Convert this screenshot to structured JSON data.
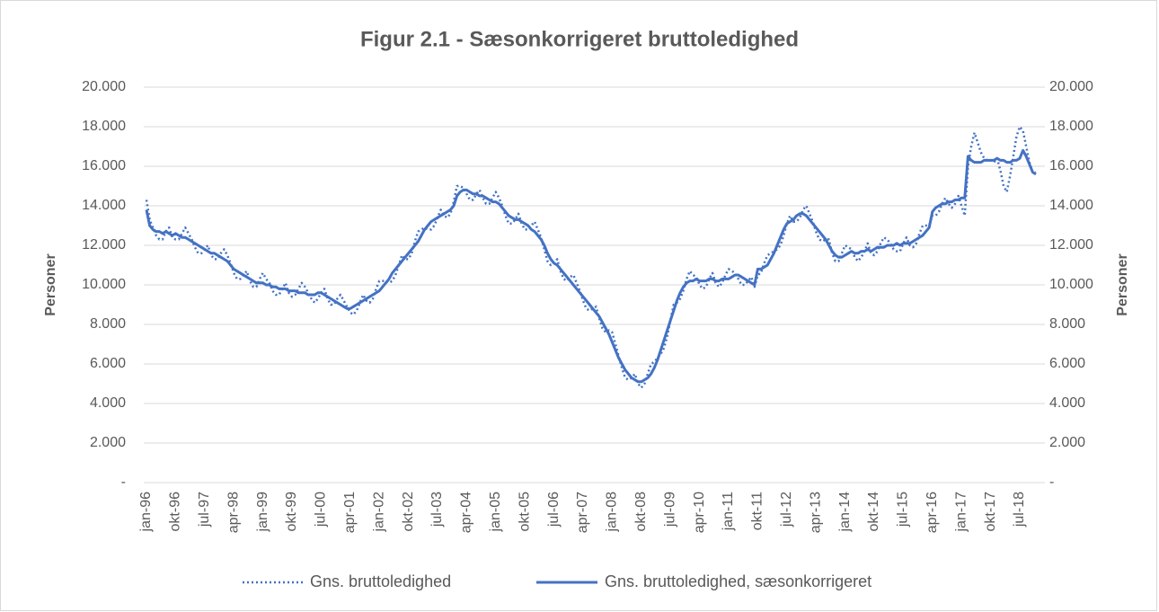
{
  "chart_data": {
    "type": "line",
    "title": "Figur 2.1 - Sæsonkorrigeret bruttoledighed",
    "ylabel": "Personer",
    "y2label": "Personer",
    "categories": [
      "jan-96",
      null,
      null,
      null,
      null,
      null,
      null,
      null,
      null,
      "okt-96",
      null,
      null,
      null,
      null,
      null,
      null,
      null,
      null,
      "jul-97",
      null,
      null,
      null,
      null,
      null,
      null,
      null,
      null,
      "apr-98",
      null,
      null,
      null,
      null,
      null,
      null,
      null,
      null,
      "jan-99",
      null,
      null,
      null,
      null,
      null,
      null,
      null,
      null,
      "okt-99",
      null,
      null,
      null,
      null,
      null,
      null,
      null,
      null,
      "jul-00",
      null,
      null,
      null,
      null,
      null,
      null,
      null,
      null,
      "apr-01",
      null,
      null,
      null,
      null,
      null,
      null,
      null,
      null,
      "jan-02",
      null,
      null,
      null,
      null,
      null,
      null,
      null,
      null,
      "okt-02",
      null,
      null,
      null,
      null,
      null,
      null,
      null,
      null,
      "jul-03",
      null,
      null,
      null,
      null,
      null,
      null,
      null,
      null,
      "apr-04",
      null,
      null,
      null,
      null,
      null,
      null,
      null,
      null,
      "jan-05",
      null,
      null,
      null,
      null,
      null,
      null,
      null,
      null,
      "okt-05",
      null,
      null,
      null,
      null,
      null,
      null,
      null,
      null,
      "jul-06",
      null,
      null,
      null,
      null,
      null,
      null,
      null,
      null,
      "apr-07",
      null,
      null,
      null,
      null,
      null,
      null,
      null,
      null,
      "jan-08",
      null,
      null,
      null,
      null,
      null,
      null,
      null,
      null,
      "okt-08",
      null,
      null,
      null,
      null,
      null,
      null,
      null,
      null,
      "jul-09",
      null,
      null,
      null,
      null,
      null,
      null,
      null,
      null,
      "apr-10",
      null,
      null,
      null,
      null,
      null,
      null,
      null,
      null,
      "jan-11",
      null,
      null,
      null,
      null,
      null,
      null,
      null,
      null,
      "okt-11",
      null,
      null,
      null,
      null,
      null,
      null,
      null,
      null,
      "jul-12",
      null,
      null,
      null,
      null,
      null,
      null,
      null,
      null,
      "apr-13",
      null,
      null,
      null,
      null,
      null,
      null,
      null,
      null,
      "jan-14",
      null,
      null,
      null,
      null,
      null,
      null,
      null,
      null,
      "okt-14",
      null,
      null,
      null,
      null,
      null,
      null,
      null,
      null,
      "jul-15",
      null,
      null,
      null,
      null,
      null,
      null,
      null,
      null,
      "apr-16",
      null,
      null,
      null,
      null,
      null,
      null,
      null,
      null,
      "jan-17",
      null,
      null,
      null,
      null,
      null,
      null,
      null,
      null,
      "okt-17",
      null,
      null,
      null,
      null,
      null,
      null,
      null,
      null,
      "jul-18",
      null,
      null,
      null,
      null,
      null
    ],
    "series": [
      {
        "name": "Gns. bruttoledighed",
        "color": "#4472c4",
        "dash": "dotted",
        "values": [
          14300,
          13300,
          12900,
          12500,
          12300,
          12300,
          12700,
          12900,
          12400,
          12300,
          12300,
          12600,
          12900,
          12600,
          12300,
          11900,
          11600,
          11600,
          11800,
          12000,
          11500,
          11300,
          11300,
          11600,
          11800,
          11500,
          11100,
          10600,
          10300,
          10300,
          10500,
          10700,
          10200,
          9900,
          9900,
          10300,
          10600,
          10300,
          10100,
          9700,
          9500,
          9500,
          9800,
          10100,
          9600,
          9400,
          9500,
          9800,
          10100,
          9900,
          9600,
          9300,
          9100,
          9300,
          9600,
          9800,
          9300,
          9000,
          9000,
          9300,
          9500,
          9200,
          8900,
          8600,
          8500,
          8700,
          9100,
          9500,
          9200,
          9100,
          9300,
          9800,
          10200,
          10200,
          10200,
          10100,
          10200,
          10500,
          11000,
          11500,
          11300,
          11300,
          11600,
          12200,
          12700,
          12800,
          12900,
          12800,
          12800,
          13000,
          13400,
          13800,
          13500,
          13400,
          13600,
          14200,
          15000,
          15000,
          14900,
          14600,
          14300,
          14300,
          14600,
          14800,
          14400,
          14100,
          14100,
          14400,
          14700,
          14400,
          14000,
          13500,
          13100,
          13100,
          13300,
          13600,
          13100,
          12800,
          12800,
          13000,
          13200,
          12800,
          12400,
          11800,
          11200,
          11000,
          11100,
          11300,
          10700,
          10300,
          10200,
          10400,
          10500,
          10100,
          9700,
          9200,
          8800,
          8700,
          8800,
          8900,
          8300,
          7800,
          7600,
          7700,
          7600,
          7000,
          6400,
          5800,
          5300,
          5200,
          5300,
          5500,
          5000,
          4800,
          5000,
          5500,
          6000,
          6100,
          6300,
          6500,
          6800,
          7400,
          8200,
          9000,
          9100,
          9300,
          9700,
          10300,
          10700,
          10500,
          10400,
          10000,
          9800,
          9900,
          10300,
          10600,
          10100,
          9900,
          10100,
          10500,
          10800,
          10700,
          10600,
          10300,
          10000,
          10000,
          10200,
          10400,
          9900,
          10500,
          10600,
          11100,
          11500,
          11600,
          11700,
          11800,
          12000,
          12500,
          13100,
          13500,
          13200,
          13200,
          13400,
          13800,
          14000,
          13600,
          13200,
          12700,
          12300,
          12200,
          12300,
          12300,
          11600,
          11200,
          11200,
          11600,
          12000,
          11900,
          11800,
          11400,
          11200,
          11400,
          11700,
          12100,
          11600,
          11500,
          11700,
          12100,
          12400,
          12300,
          12100,
          11800,
          11700,
          11700,
          12100,
          12400,
          12000,
          11900,
          12100,
          12600,
          13000,
          13000,
          13000,
          13500,
          13500,
          13700,
          14100,
          14400,
          14100,
          13900,
          14100,
          14500,
          14000,
          13500,
          16000,
          17000,
          17700,
          17200,
          16700,
          16400,
          16300,
          16300,
          16200,
          16400,
          15800,
          15000,
          14700,
          15500,
          16500,
          17500,
          18000,
          17800,
          17000,
          16200,
          15700,
          15700
        ]
      },
      {
        "name": "Gns. bruttoledighed, sæsonkorrigeret",
        "color": "#4472c4",
        "dash": "solid",
        "values": [
          13800,
          13000,
          12800,
          12700,
          12700,
          12600,
          12700,
          12600,
          12500,
          12600,
          12500,
          12400,
          12400,
          12300,
          12200,
          12100,
          12000,
          11900,
          11800,
          11700,
          11600,
          11600,
          11500,
          11400,
          11300,
          11200,
          11000,
          10800,
          10700,
          10600,
          10500,
          10400,
          10300,
          10200,
          10100,
          10100,
          10100,
          10000,
          10000,
          9900,
          9900,
          9800,
          9800,
          9800,
          9700,
          9700,
          9700,
          9600,
          9600,
          9600,
          9500,
          9500,
          9500,
          9600,
          9600,
          9500,
          9400,
          9300,
          9200,
          9100,
          9000,
          8900,
          8800,
          8800,
          8900,
          9000,
          9100,
          9200,
          9300,
          9400,
          9500,
          9600,
          9700,
          9900,
          10100,
          10300,
          10600,
          10800,
          11000,
          11200,
          11400,
          11600,
          11800,
          12000,
          12200,
          12500,
          12800,
          13000,
          13200,
          13300,
          13400,
          13500,
          13600,
          13700,
          13800,
          14000,
          14500,
          14700,
          14800,
          14800,
          14700,
          14600,
          14600,
          14500,
          14500,
          14400,
          14300,
          14200,
          14200,
          14100,
          13900,
          13700,
          13500,
          13400,
          13300,
          13300,
          13200,
          13100,
          13000,
          12800,
          12700,
          12500,
          12300,
          12000,
          11600,
          11300,
          11100,
          11000,
          10800,
          10600,
          10400,
          10200,
          10000,
          9800,
          9600,
          9400,
          9200,
          9000,
          8800,
          8600,
          8400,
          8100,
          7800,
          7500,
          7100,
          6700,
          6300,
          6000,
          5700,
          5500,
          5300,
          5200,
          5100,
          5100,
          5200,
          5300,
          5500,
          5800,
          6200,
          6700,
          7200,
          7700,
          8200,
          8700,
          9200,
          9600,
          9900,
          10100,
          10200,
          10200,
          10300,
          10200,
          10200,
          10200,
          10300,
          10300,
          10200,
          10200,
          10300,
          10300,
          10300,
          10400,
          10500,
          10500,
          10400,
          10300,
          10200,
          10100,
          10000,
          10800,
          10800,
          10900,
          11000,
          11300,
          11600,
          12000,
          12400,
          12800,
          13100,
          13200,
          13300,
          13500,
          13600,
          13600,
          13500,
          13300,
          13100,
          12900,
          12700,
          12500,
          12300,
          12000,
          11700,
          11500,
          11400,
          11400,
          11500,
          11600,
          11700,
          11600,
          11600,
          11700,
          11700,
          11800,
          11700,
          11800,
          11900,
          11900,
          11900,
          12000,
          12000,
          12000,
          12100,
          12000,
          12100,
          12100,
          12100,
          12200,
          12300,
          12400,
          12500,
          12700,
          12900,
          13700,
          13900,
          14000,
          14100,
          14100,
          14200,
          14200,
          14300,
          14300,
          14400,
          14400,
          16500,
          16300,
          16200,
          16200,
          16200,
          16300,
          16300,
          16300,
          16300,
          16400,
          16300,
          16300,
          16200,
          16200,
          16300,
          16300,
          16400,
          16800,
          16500,
          16100,
          15700,
          15600
        ]
      }
    ],
    "ylim": [
      0,
      20000
    ],
    "yticks": [
      {
        "value": 0,
        "label": "-"
      },
      {
        "value": 2000,
        "label": "2.000"
      },
      {
        "value": 4000,
        "label": "4.000"
      },
      {
        "value": 6000,
        "label": "6.000"
      },
      {
        "value": 8000,
        "label": "8.000"
      },
      {
        "value": 10000,
        "label": "10.000"
      },
      {
        "value": 12000,
        "label": "12.000"
      },
      {
        "value": 14000,
        "label": "14.000"
      },
      {
        "value": 16000,
        "label": "16.000"
      },
      {
        "value": 18000,
        "label": "18.000"
      },
      {
        "value": 20000,
        "label": "20.000"
      }
    ],
    "y2lim": [
      0,
      20000
    ],
    "y2ticks": [
      {
        "value": 0,
        "label": "-"
      },
      {
        "value": 2000,
        "label": "2.000"
      },
      {
        "value": 4000,
        "label": "4.000"
      },
      {
        "value": 6000,
        "label": "6.000"
      },
      {
        "value": 8000,
        "label": "8.000"
      },
      {
        "value": 10000,
        "label": "10.000"
      },
      {
        "value": 12000,
        "label": "12.000"
      },
      {
        "value": 14000,
        "label": "14.000"
      },
      {
        "value": 16000,
        "label": "16.000"
      },
      {
        "value": 18000,
        "label": "18.000"
      },
      {
        "value": 20000,
        "label": "20.000"
      }
    ],
    "grid": true,
    "legend": "bottom"
  }
}
